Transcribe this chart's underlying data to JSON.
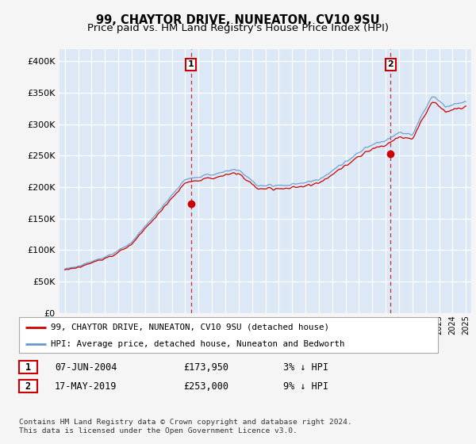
{
  "title": "99, CHAYTOR DRIVE, NUNEATON, CV10 9SU",
  "subtitle": "Price paid vs. HM Land Registry's House Price Index (HPI)",
  "ylim": [
    0,
    420000
  ],
  "yticks": [
    0,
    50000,
    100000,
    150000,
    200000,
    250000,
    300000,
    350000,
    400000
  ],
  "fig_bg_color": "#f5f5f5",
  "plot_bg_color": "#dce8f5",
  "grid_color": "#ffffff",
  "hpi_color": "#6699cc",
  "price_color": "#cc0000",
  "annotation1_year": 2004.43,
  "annotation1_price": 173950,
  "annotation2_year": 2019.37,
  "annotation2_price": 253000,
  "legend_label1": "99, CHAYTOR DRIVE, NUNEATON, CV10 9SU (detached house)",
  "legend_label2": "HPI: Average price, detached house, Nuneaton and Bedworth",
  "table_row1": [
    "1",
    "07-JUN-2004",
    "£173,950",
    "3% ↓ HPI"
  ],
  "table_row2": [
    "2",
    "17-MAY-2019",
    "£253,000",
    "9% ↓ HPI"
  ],
  "footer": "Contains HM Land Registry data © Crown copyright and database right 2024.\nThis data is licensed under the Open Government Licence v3.0.",
  "title_fontsize": 10.5,
  "subtitle_fontsize": 9.5
}
